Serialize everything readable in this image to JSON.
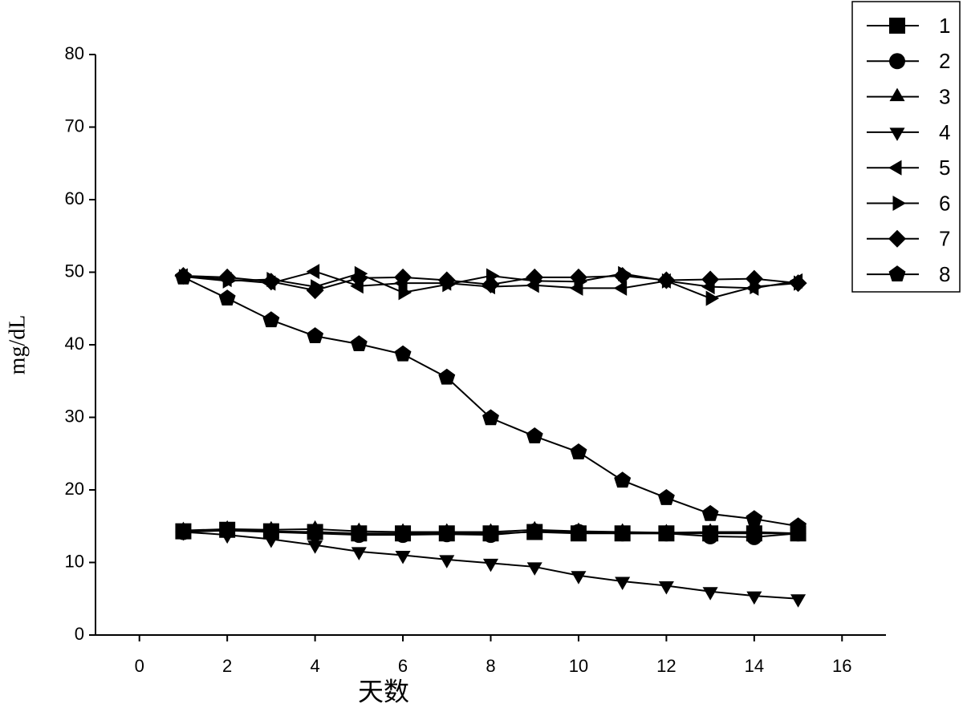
{
  "chart_data": {
    "type": "line",
    "x_label": "天数",
    "y_label": "mg/dL",
    "x": [
      1,
      2,
      3,
      4,
      5,
      6,
      7,
      8,
      9,
      10,
      11,
      12,
      13,
      14,
      15
    ],
    "xlim": [
      -1,
      17
    ],
    "xticks": [
      0,
      2,
      4,
      6,
      8,
      10,
      12,
      14,
      16
    ],
    "ylim": [
      0,
      80
    ],
    "yticks": [
      0,
      10,
      20,
      30,
      40,
      50,
      60,
      70,
      80
    ],
    "grid": false,
    "legend": "outside-right",
    "series": [
      {
        "name": "1",
        "color": "#000000",
        "marker": "square",
        "values": [
          14.3,
          14.5,
          14.3,
          14.2,
          14.0,
          14.0,
          14.0,
          14.0,
          14.2,
          14.0,
          14.0,
          14.0,
          14.0,
          14.0,
          14.0
        ]
      },
      {
        "name": "2",
        "color": "#000000",
        "marker": "circle",
        "values": [
          14.2,
          14.4,
          14.2,
          14.0,
          13.8,
          13.8,
          13.9,
          13.8,
          14.3,
          14.2,
          14.0,
          14.0,
          13.6,
          13.5,
          14.0
        ]
      },
      {
        "name": "3",
        "color": "#000000",
        "marker": "triangle-up",
        "values": [
          14.4,
          14.6,
          14.5,
          14.6,
          14.3,
          14.2,
          14.2,
          14.2,
          14.5,
          14.3,
          14.2,
          14.1,
          14.2,
          14.2,
          14.0
        ]
      },
      {
        "name": "4",
        "color": "#000000",
        "marker": "triangle-down",
        "values": [
          14.2,
          13.8,
          13.2,
          12.4,
          11.5,
          11.0,
          10.4,
          9.9,
          9.4,
          8.2,
          7.4,
          6.8,
          6.0,
          5.4,
          5.0
        ]
      },
      {
        "name": "5",
        "color": "#000000",
        "marker": "triangle-left",
        "values": [
          49.5,
          49.0,
          48.5,
          50.1,
          48.1,
          48.5,
          48.5,
          48.0,
          48.2,
          47.8,
          47.8,
          48.8,
          48.0,
          47.8,
          48.8
        ]
      },
      {
        "name": "6",
        "color": "#000000",
        "marker": "triangle-right",
        "values": [
          49.4,
          48.8,
          49.0,
          48.0,
          49.8,
          47.2,
          48.3,
          49.5,
          48.8,
          48.7,
          49.8,
          48.8,
          46.4,
          48.0,
          48.5
        ]
      },
      {
        "name": "7",
        "color": "#000000",
        "marker": "diamond",
        "values": [
          49.5,
          49.3,
          48.7,
          47.5,
          49.2,
          49.3,
          48.9,
          48.3,
          49.3,
          49.3,
          49.5,
          48.9,
          49.0,
          49.1,
          48.5
        ]
      },
      {
        "name": "8",
        "color": "#000000",
        "marker": "pentagon",
        "values": [
          49.3,
          46.4,
          43.4,
          41.2,
          40.1,
          38.7,
          35.5,
          29.9,
          27.4,
          25.2,
          21.3,
          18.9,
          16.7,
          16.0,
          15.0
        ]
      }
    ]
  }
}
